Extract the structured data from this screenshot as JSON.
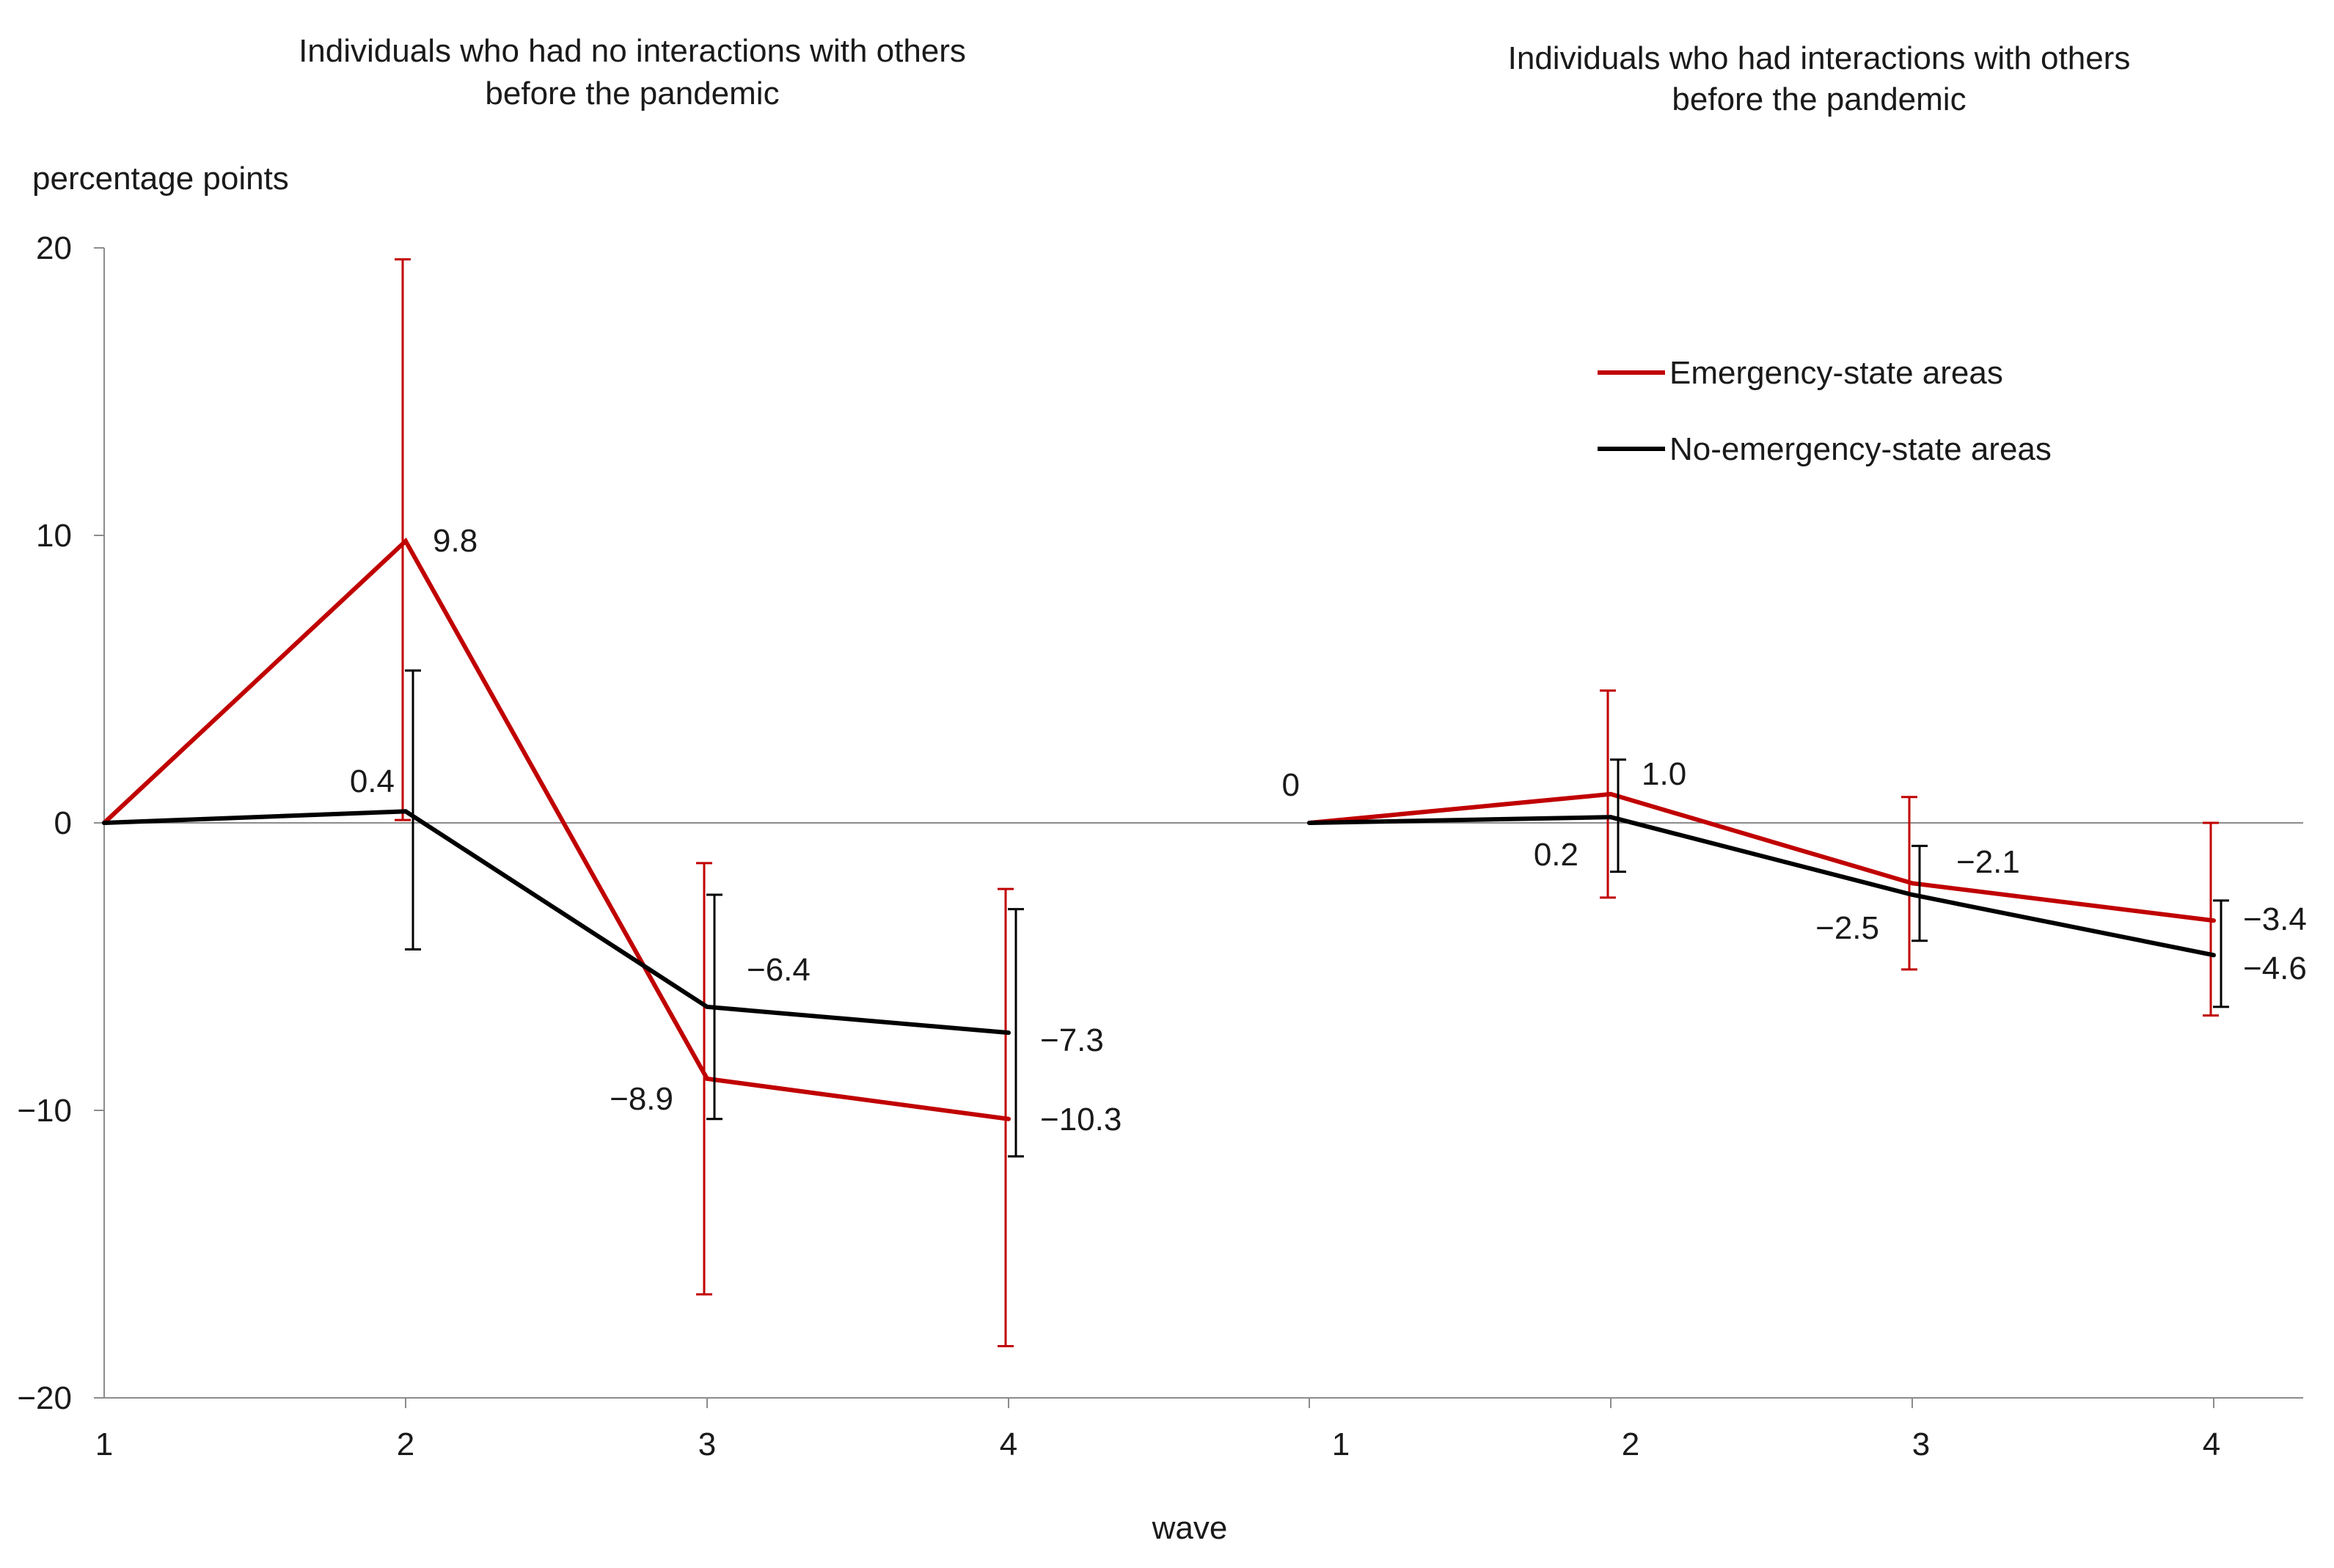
{
  "chart_data": {
    "type": "line",
    "ylabel": "percentage points",
    "xlabel": "wave",
    "ylim": [
      -20,
      20
    ],
    "yticks": [
      20,
      10,
      0,
      -10,
      -20
    ],
    "ytick_labels": [
      "20",
      "10",
      "0",
      "−10",
      "−20"
    ],
    "x": [
      1,
      2,
      3,
      4
    ],
    "xtick_labels": [
      "1",
      "2",
      "3",
      "4"
    ],
    "legend": {
      "position": "top-right",
      "entries": [
        "Emergency-state areas",
        "No-emergency-state areas"
      ]
    },
    "colors": {
      "emergency": "#c00000",
      "no_emergency": "#000000",
      "axis": "#8c8c8c"
    },
    "panels": [
      {
        "title_lines": [
          "Individuals  who had no interactions with others",
          "before the pandemic"
        ],
        "series": [
          {
            "name": "Emergency-state areas",
            "key": "emergency",
            "values": [
              0,
              9.8,
              -8.9,
              -10.3
            ],
            "labels": [
              "",
              "9.8",
              "−8.9",
              "−10.3"
            ],
            "ci_low": [
              null,
              0.1,
              -16.4,
              -18.2
            ],
            "ci_high": [
              null,
              19.6,
              -1.4,
              -2.3
            ]
          },
          {
            "name": "No-emergency-state areas",
            "key": "no_emergency",
            "values": [
              0,
              0.4,
              -6.4,
              -7.3
            ],
            "labels": [
              "",
              "0.4",
              "−6.4",
              "−7.3"
            ],
            "ci_low": [
              null,
              -4.4,
              -10.3,
              -11.6
            ],
            "ci_high": [
              null,
              5.3,
              -2.5,
              -3.0
            ]
          }
        ]
      },
      {
        "title_lines": [
          "Individuals  who had interactions with others",
          "before the pandemic"
        ],
        "series": [
          {
            "name": "Emergency-state areas",
            "key": "emergency",
            "values": [
              0,
              1.0,
              -2.1,
              -3.4
            ],
            "labels": [
              "0",
              "1.0",
              "−2.1",
              "−3.4"
            ],
            "ci_low": [
              null,
              -2.6,
              -5.1,
              -6.7
            ],
            "ci_high": [
              null,
              4.6,
              0.9,
              0.0
            ]
          },
          {
            "name": "No-emergency-state areas",
            "key": "no_emergency",
            "values": [
              0,
              0.2,
              -2.5,
              -4.6
            ],
            "labels": [
              "",
              "0.2",
              "−2.5",
              "−4.6"
            ],
            "ci_low": [
              null,
              -1.7,
              -4.1,
              -6.4
            ],
            "ci_high": [
              null,
              2.2,
              -0.8,
              -2.7
            ]
          }
        ]
      }
    ]
  }
}
